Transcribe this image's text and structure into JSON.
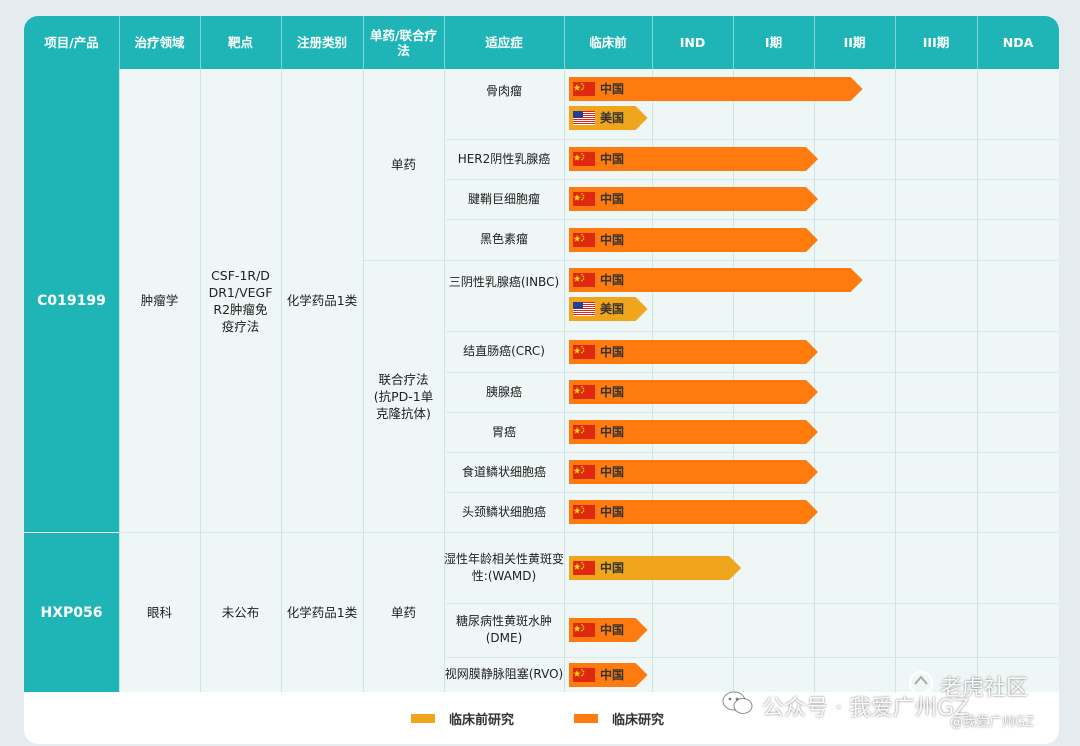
{
  "chart_data": {
    "type": "table",
    "columns": [
      "项目/产品",
      "治疗领域",
      "靶点",
      "注册类别",
      "单药/联合疗法",
      "适应症",
      "临床前",
      "IND",
      "I期",
      "II期",
      "III期",
      "NDA"
    ],
    "stages": [
      "临床前",
      "IND",
      "I期",
      "II期",
      "III期",
      "NDA"
    ],
    "products": [
      {
        "name": "C019199",
        "area": "肿瘤学",
        "target": "CSF-1R/DDR1/VEGFR2肿瘤免疫疗法",
        "registration": "化学药品1类"
      },
      {
        "name": "HXP056",
        "area": "眼科",
        "target": "未公布",
        "registration": "化学药品1类"
      }
    ],
    "therapy_groups": [
      {
        "label": "单药"
      },
      {
        "label": "联合疗法(抗PD-1单克隆抗体)"
      },
      {
        "label": "单药"
      }
    ],
    "indications": [
      {
        "name": "骨肉瘤",
        "bars": [
          {
            "country": "中国",
            "flag": "cn-flag",
            "stage": "II期",
            "progress": 3.6,
            "type": "临床研究"
          },
          {
            "country": "美国",
            "flag": "us-flag",
            "stage": "临床前",
            "progress": 0.95,
            "type": "临床前研究"
          }
        ]
      },
      {
        "name": "HER2阴性乳腺癌",
        "bars": [
          {
            "country": "中国",
            "flag": "cn-flag",
            "stage": "II期",
            "progress": 3.05,
            "type": "临床研究"
          }
        ]
      },
      {
        "name": "腱鞘巨细胞瘤",
        "bars": [
          {
            "country": "中国",
            "flag": "cn-flag",
            "stage": "II期",
            "progress": 3.05,
            "type": "临床研究"
          }
        ]
      },
      {
        "name": "黑色素瘤",
        "bars": [
          {
            "country": "中国",
            "flag": "cn-flag",
            "stage": "II期",
            "progress": 3.05,
            "type": "临床研究"
          }
        ]
      },
      {
        "name": "三阴性乳腺癌(INBC)",
        "bars": [
          {
            "country": "中国",
            "flag": "cn-flag",
            "stage": "II期",
            "progress": 3.6,
            "type": "临床研究"
          },
          {
            "country": "美国",
            "flag": "us-flag",
            "stage": "临床前",
            "progress": 0.95,
            "type": "临床前研究"
          }
        ]
      },
      {
        "name": "结直肠癌(CRC)",
        "bars": [
          {
            "country": "中国",
            "flag": "cn-flag",
            "stage": "II期",
            "progress": 3.05,
            "type": "临床研究"
          }
        ]
      },
      {
        "name": "胰腺癌",
        "bars": [
          {
            "country": "中国",
            "flag": "cn-flag",
            "stage": "II期",
            "progress": 3.05,
            "type": "临床研究"
          }
        ]
      },
      {
        "name": "胃癌",
        "bars": [
          {
            "country": "中国",
            "flag": "cn-flag",
            "stage": "II期",
            "progress": 3.05,
            "type": "临床研究"
          }
        ]
      },
      {
        "name": "食道鳞状细胞癌",
        "bars": [
          {
            "country": "中国",
            "flag": "cn-flag",
            "stage": "II期",
            "progress": 3.05,
            "type": "临床研究"
          }
        ]
      },
      {
        "name": "头颈鳞状细胞癌",
        "bars": [
          {
            "country": "中国",
            "flag": "cn-flag",
            "stage": "II期",
            "progress": 3.05,
            "type": "临床研究"
          }
        ]
      },
      {
        "name": "湿性年龄相关性黄斑变性:(WAMD)",
        "bars": [
          {
            "country": "中国",
            "flag": "cn-flag",
            "stage": "I期",
            "progress": 2.1,
            "type": "临床前研究"
          }
        ]
      },
      {
        "name": "糖尿病性黄斑水肿(DME)",
        "bars": [
          {
            "country": "中国",
            "flag": "cn-flag",
            "stage": "临床前",
            "progress": 0.95,
            "type": "临床研究"
          }
        ]
      },
      {
        "name": "视网膜静脉阻塞(RVO)",
        "bars": [
          {
            "country": "中国",
            "flag": "cn-flag",
            "stage": "临床前",
            "progress": 0.95,
            "type": "临床研究"
          }
        ]
      }
    ],
    "legend": [
      {
        "label": "临床前研究",
        "color": "#efa51c"
      },
      {
        "label": "临床研究",
        "color": "#ff7a0f"
      }
    ],
    "legend_placement": "bottom"
  },
  "colors": {
    "header": "#1fb5b6",
    "preclinical": "#efa51c",
    "clinical": "#ff7a0f"
  },
  "watermark": {
    "text": "公众号 · 我爱广州GZ",
    "brand": "老虎社区",
    "sub": "@我爱广州GZ"
  }
}
